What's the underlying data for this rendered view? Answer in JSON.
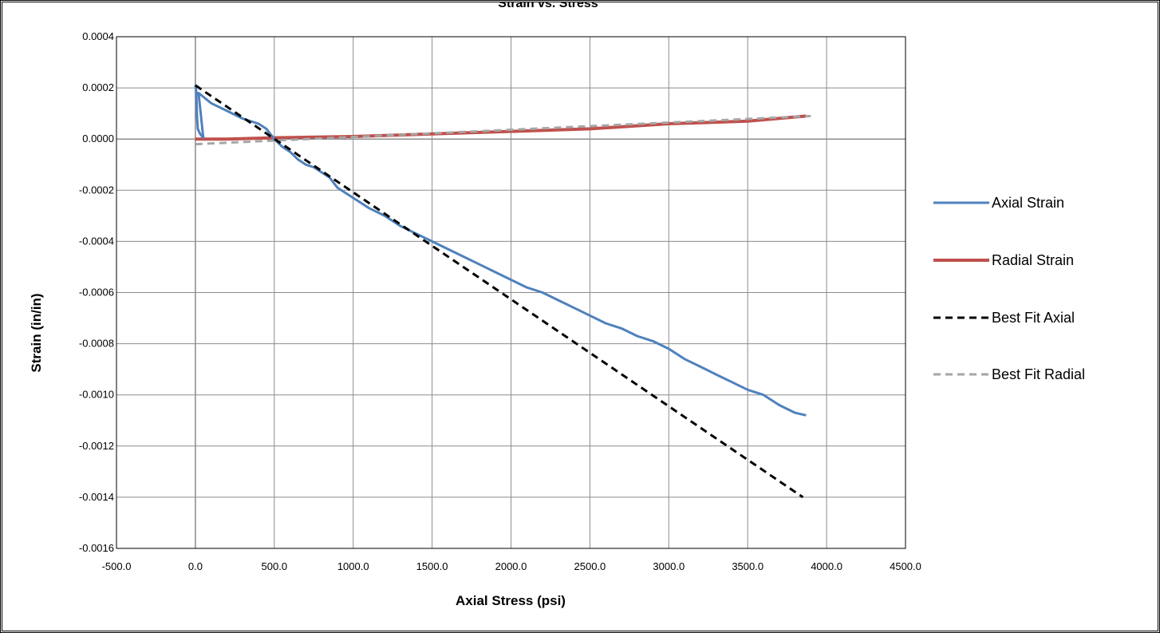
{
  "chart_data": {
    "type": "line",
    "title": "Strain vs. Stress",
    "xlabel": "Axial Stress (psi)",
    "ylabel": "Strain (in/in)",
    "xlim": [
      -500,
      4500
    ],
    "ylim": [
      -0.0016,
      0.0004
    ],
    "x_ticks": [
      -500,
      0,
      500,
      1000,
      1500,
      2000,
      2500,
      3000,
      3500,
      4000,
      4500
    ],
    "x_tick_labels": [
      "-500.0",
      "0.0",
      "500.0",
      "1000.0",
      "1500.0",
      "2000.0",
      "2500.0",
      "3000.0",
      "3500.0",
      "4000.0",
      "4500.0"
    ],
    "y_ticks": [
      0.0004,
      0.0002,
      0.0,
      -0.0002,
      -0.0004,
      -0.0006,
      -0.0008,
      -0.001,
      -0.0012,
      -0.0014,
      -0.0016
    ],
    "y_tick_labels": [
      "0.0004",
      "0.0002",
      "0.0000",
      "-0.0002",
      "-0.0004",
      "-0.0006",
      "-0.0008",
      "-0.0010",
      "-0.0012",
      "-0.0014",
      "-0.0016"
    ],
    "grid": true,
    "legend_position": "right",
    "series": [
      {
        "name": "Axial Strain",
        "color": "#4f81bd",
        "style": "solid",
        "points": [
          [
            0,
            0.00021
          ],
          [
            5,
            0.00019
          ],
          [
            8,
            0.00014
          ],
          [
            10,
            9e-05
          ],
          [
            15,
            4e-05
          ],
          [
            30,
            2e-05
          ],
          [
            50,
            5e-06
          ],
          [
            20,
            0.00018
          ],
          [
            100,
            0.00014
          ],
          [
            200,
            0.00011
          ],
          [
            300,
            8e-05
          ],
          [
            400,
            6e-05
          ],
          [
            450,
            4e-05
          ],
          [
            500,
            0.0
          ],
          [
            550,
            -3e-05
          ],
          [
            600,
            -5e-05
          ],
          [
            650,
            -8e-05
          ],
          [
            700,
            -0.0001
          ],
          [
            750,
            -0.00011
          ],
          [
            800,
            -0.00013
          ],
          [
            850,
            -0.00015
          ],
          [
            900,
            -0.00019
          ],
          [
            950,
            -0.00021
          ],
          [
            1000,
            -0.00023
          ],
          [
            1050,
            -0.00025
          ],
          [
            1100,
            -0.00027
          ],
          [
            1200,
            -0.0003
          ],
          [
            1300,
            -0.00034
          ],
          [
            1400,
            -0.00037
          ],
          [
            1500,
            -0.0004
          ],
          [
            1600,
            -0.00043
          ],
          [
            1700,
            -0.00046
          ],
          [
            1800,
            -0.00049
          ],
          [
            1900,
            -0.00052
          ],
          [
            2000,
            -0.00055
          ],
          [
            2100,
            -0.00058
          ],
          [
            2200,
            -0.0006
          ],
          [
            2300,
            -0.00063
          ],
          [
            2400,
            -0.00066
          ],
          [
            2500,
            -0.00069
          ],
          [
            2600,
            -0.00072
          ],
          [
            2700,
            -0.00074
          ],
          [
            2800,
            -0.00077
          ],
          [
            2900,
            -0.00079
          ],
          [
            3000,
            -0.00082
          ],
          [
            3100,
            -0.00086
          ],
          [
            3200,
            -0.00089
          ],
          [
            3300,
            -0.00092
          ],
          [
            3400,
            -0.00095
          ],
          [
            3500,
            -0.00098
          ],
          [
            3600,
            -0.001
          ],
          [
            3700,
            -0.00104
          ],
          [
            3800,
            -0.00107
          ],
          [
            3870,
            -0.00108
          ]
        ]
      },
      {
        "name": "Radial Strain",
        "color": "#c0504d",
        "style": "solid",
        "points": [
          [
            0,
            0.0
          ],
          [
            200,
            0.0
          ],
          [
            500,
            5e-06
          ],
          [
            1000,
            1e-05
          ],
          [
            1500,
            2e-05
          ],
          [
            2000,
            3e-05
          ],
          [
            2500,
            4e-05
          ],
          [
            3000,
            6e-05
          ],
          [
            3500,
            7e-05
          ],
          [
            3870,
            9e-05
          ]
        ]
      },
      {
        "name": "Best Fit Axial",
        "color": "#000000",
        "style": "dashed",
        "points": [
          [
            0,
            0.00021
          ],
          [
            3850,
            -0.0014
          ]
        ]
      },
      {
        "name": "Best Fit Radial",
        "color": "#a6a6a6",
        "style": "dashed",
        "points": [
          [
            0,
            -2e-05
          ],
          [
            3900,
            9e-05
          ]
        ]
      }
    ]
  }
}
